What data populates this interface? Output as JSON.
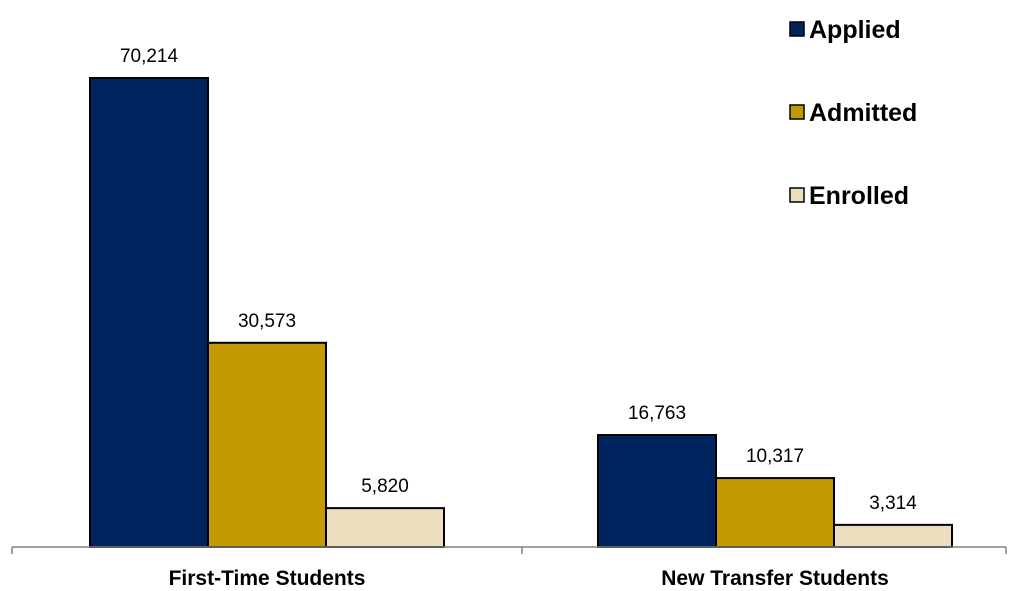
{
  "chart_data": {
    "type": "bar",
    "categories": [
      "First-Time Students",
      "New Transfer Students"
    ],
    "series": [
      {
        "name": "Applied",
        "values": [
          70214,
          16763
        ],
        "labels": [
          "70,214",
          "16,763"
        ],
        "color": "#00245D"
      },
      {
        "name": "Admitted",
        "values": [
          30573,
          10317
        ],
        "labels": [
          "30,573",
          "10,317"
        ],
        "color": "#C39B00"
      },
      {
        "name": "Enrolled",
        "values": [
          5820,
          3314
        ],
        "labels": [
          "5,820",
          "3,314"
        ],
        "color": "#EBDDBE"
      }
    ],
    "title": "",
    "xlabel": "",
    "ylabel": "",
    "ylim": [
      0,
      80000
    ],
    "grid": false,
    "legend": "top-right"
  }
}
